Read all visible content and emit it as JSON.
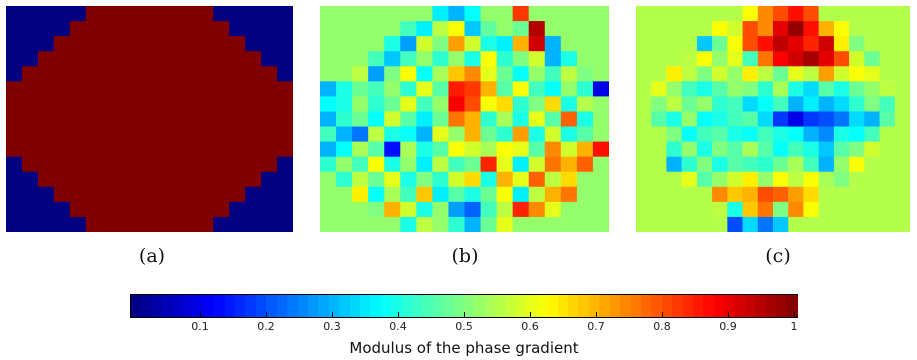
{
  "captions": {
    "a": "(a)",
    "b": "(b)",
    "c": "(c)"
  },
  "colorbar": {
    "label": "Modulus of the phase gradient",
    "ticks": [
      "0.1",
      "0.2",
      "0.3",
      "0.4",
      "0.5",
      "0.6",
      "0.7",
      "0.8",
      "0.9",
      "1"
    ],
    "tick_values": [
      0.1,
      0.2,
      0.3,
      0.4,
      0.5,
      0.6,
      0.7,
      0.8,
      0.9,
      1.0
    ],
    "range": [
      0,
      1
    ],
    "colormap": "jet"
  },
  "chart_data": [
    {
      "type": "heatmap",
      "panel": "a",
      "rows": 15,
      "cols": 18,
      "background_value": 0.0,
      "values": [
        [
          0.0,
          0.0,
          0.0,
          0.0,
          0.0,
          1.0,
          1.0,
          1.0,
          1.0,
          1.0,
          1.0,
          1.0,
          1.0,
          0.0,
          0.0,
          0.0,
          0.0,
          0.0
        ],
        [
          0.0,
          0.0,
          0.0,
          0.0,
          1.0,
          1.0,
          1.0,
          1.0,
          1.0,
          1.0,
          1.0,
          1.0,
          1.0,
          1.0,
          0.0,
          0.0,
          0.0,
          0.0
        ],
        [
          0.0,
          0.0,
          0.0,
          1.0,
          1.0,
          1.0,
          1.0,
          1.0,
          1.0,
          1.0,
          1.0,
          1.0,
          1.0,
          1.0,
          1.0,
          0.0,
          0.0,
          0.0
        ],
        [
          0.0,
          0.0,
          1.0,
          1.0,
          1.0,
          1.0,
          1.0,
          1.0,
          1.0,
          1.0,
          1.0,
          1.0,
          1.0,
          1.0,
          1.0,
          1.0,
          0.0,
          0.0
        ],
        [
          0.0,
          1.0,
          1.0,
          1.0,
          1.0,
          1.0,
          1.0,
          1.0,
          1.0,
          1.0,
          1.0,
          1.0,
          1.0,
          1.0,
          1.0,
          1.0,
          1.0,
          0.0
        ],
        [
          1.0,
          1.0,
          1.0,
          1.0,
          1.0,
          1.0,
          1.0,
          1.0,
          1.0,
          1.0,
          1.0,
          1.0,
          1.0,
          1.0,
          1.0,
          1.0,
          1.0,
          1.0
        ],
        [
          1.0,
          1.0,
          1.0,
          1.0,
          1.0,
          1.0,
          1.0,
          1.0,
          1.0,
          1.0,
          1.0,
          1.0,
          1.0,
          1.0,
          1.0,
          1.0,
          1.0,
          1.0
        ],
        [
          1.0,
          1.0,
          1.0,
          1.0,
          1.0,
          1.0,
          1.0,
          1.0,
          1.0,
          1.0,
          1.0,
          1.0,
          1.0,
          1.0,
          1.0,
          1.0,
          1.0,
          1.0
        ],
        [
          1.0,
          1.0,
          1.0,
          1.0,
          1.0,
          1.0,
          1.0,
          1.0,
          1.0,
          1.0,
          1.0,
          1.0,
          1.0,
          1.0,
          1.0,
          1.0,
          1.0,
          1.0
        ],
        [
          1.0,
          1.0,
          1.0,
          1.0,
          1.0,
          1.0,
          1.0,
          1.0,
          1.0,
          1.0,
          1.0,
          1.0,
          1.0,
          1.0,
          1.0,
          1.0,
          1.0,
          1.0
        ],
        [
          0.0,
          1.0,
          1.0,
          1.0,
          1.0,
          1.0,
          1.0,
          1.0,
          1.0,
          1.0,
          1.0,
          1.0,
          1.0,
          1.0,
          1.0,
          1.0,
          1.0,
          0.0
        ],
        [
          0.0,
          0.0,
          1.0,
          1.0,
          1.0,
          1.0,
          1.0,
          1.0,
          1.0,
          1.0,
          1.0,
          1.0,
          1.0,
          1.0,
          1.0,
          1.0,
          0.0,
          0.0
        ],
        [
          0.0,
          0.0,
          0.0,
          1.0,
          1.0,
          1.0,
          1.0,
          1.0,
          1.0,
          1.0,
          1.0,
          1.0,
          1.0,
          1.0,
          1.0,
          0.0,
          0.0,
          0.0
        ],
        [
          0.0,
          0.0,
          0.0,
          0.0,
          1.0,
          1.0,
          1.0,
          1.0,
          1.0,
          1.0,
          1.0,
          1.0,
          1.0,
          1.0,
          0.0,
          0.0,
          0.0,
          0.0
        ],
        [
          0.0,
          0.0,
          0.0,
          0.0,
          0.0,
          1.0,
          1.0,
          1.0,
          1.0,
          1.0,
          1.0,
          1.0,
          1.0,
          0.0,
          0.0,
          0.0,
          0.0,
          0.0
        ]
      ]
    },
    {
      "type": "heatmap",
      "panel": "b",
      "rows": 15,
      "cols": 18,
      "background_value": 0.52,
      "values": [
        [
          0.52,
          0.52,
          0.52,
          0.52,
          0.52,
          0.52,
          0.52,
          0.36,
          0.3,
          0.38,
          0.52,
          0.52,
          0.82,
          0.52,
          0.52,
          0.52,
          0.52,
          0.52
        ],
        [
          0.52,
          0.52,
          0.52,
          0.52,
          0.52,
          0.44,
          0.36,
          0.56,
          0.62,
          0.32,
          0.47,
          0.52,
          0.48,
          0.95,
          0.52,
          0.52,
          0.52,
          0.52
        ],
        [
          0.52,
          0.52,
          0.52,
          0.52,
          0.4,
          0.28,
          0.58,
          0.5,
          0.72,
          0.58,
          0.4,
          0.36,
          0.7,
          0.92,
          0.3,
          0.52,
          0.52,
          0.52
        ],
        [
          0.52,
          0.52,
          0.52,
          0.44,
          0.32,
          0.44,
          0.52,
          0.42,
          0.52,
          0.4,
          0.62,
          0.42,
          0.5,
          0.58,
          0.3,
          0.4,
          0.52,
          0.52
        ],
        [
          0.52,
          0.52,
          0.56,
          0.28,
          0.5,
          0.62,
          0.38,
          0.54,
          0.68,
          0.74,
          0.6,
          0.48,
          0.38,
          0.52,
          0.44,
          0.56,
          0.5,
          0.52
        ],
        [
          0.3,
          0.4,
          0.48,
          0.44,
          0.52,
          0.42,
          0.6,
          0.46,
          0.85,
          0.82,
          0.7,
          0.46,
          0.62,
          0.44,
          0.38,
          0.52,
          0.42,
          0.1
        ],
        [
          0.38,
          0.4,
          0.52,
          0.42,
          0.48,
          0.6,
          0.44,
          0.52,
          0.88,
          0.8,
          0.62,
          0.66,
          0.42,
          0.5,
          0.66,
          0.4,
          0.55,
          0.52
        ],
        [
          0.3,
          0.42,
          0.48,
          0.38,
          0.58,
          0.46,
          0.36,
          0.48,
          0.76,
          0.7,
          0.42,
          0.54,
          0.4,
          0.6,
          0.46,
          0.78,
          0.4,
          0.52
        ],
        [
          0.44,
          0.3,
          0.24,
          0.56,
          0.4,
          0.38,
          0.3,
          0.6,
          0.52,
          0.7,
          0.48,
          0.42,
          0.72,
          0.4,
          0.58,
          0.4,
          0.46,
          0.52
        ],
        [
          0.3,
          0.38,
          0.54,
          0.46,
          0.14,
          0.54,
          0.4,
          0.46,
          0.62,
          0.58,
          0.54,
          0.62,
          0.6,
          0.46,
          0.74,
          0.58,
          0.7,
          0.86
        ],
        [
          0.42,
          0.52,
          0.44,
          0.62,
          0.4,
          0.52,
          0.36,
          0.56,
          0.44,
          0.48,
          0.84,
          0.6,
          0.36,
          0.58,
          0.76,
          0.7,
          0.78,
          0.52
        ],
        [
          0.52,
          0.42,
          0.56,
          0.48,
          0.6,
          0.4,
          0.5,
          0.42,
          0.58,
          0.66,
          0.4,
          0.7,
          0.6,
          0.78,
          0.56,
          0.66,
          0.52,
          0.52
        ],
        [
          0.52,
          0.52,
          0.64,
          0.38,
          0.54,
          0.44,
          0.68,
          0.36,
          0.46,
          0.4,
          0.48,
          0.62,
          0.36,
          0.56,
          0.7,
          0.76,
          0.52,
          0.52
        ],
        [
          0.52,
          0.52,
          0.52,
          0.5,
          0.7,
          0.58,
          0.4,
          0.52,
          0.28,
          0.22,
          0.44,
          0.56,
          0.84,
          0.74,
          0.6,
          0.52,
          0.52,
          0.52
        ],
        [
          0.52,
          0.52,
          0.52,
          0.52,
          0.52,
          0.4,
          0.56,
          0.52,
          0.42,
          0.3,
          0.48,
          0.6,
          0.52,
          0.52,
          0.52,
          0.52,
          0.52,
          0.52
        ]
      ]
    },
    {
      "type": "heatmap",
      "panel": "c",
      "rows": 15,
      "cols": 18,
      "background_value": 0.55,
      "values": [
        [
          0.55,
          0.55,
          0.55,
          0.55,
          0.55,
          0.55,
          0.55,
          0.62,
          0.74,
          0.8,
          0.86,
          0.8,
          0.55,
          0.55,
          0.55,
          0.55,
          0.55,
          0.55
        ],
        [
          0.55,
          0.55,
          0.55,
          0.55,
          0.55,
          0.62,
          0.58,
          0.8,
          0.74,
          0.9,
          0.98,
          0.86,
          0.7,
          0.62,
          0.55,
          0.55,
          0.55,
          0.55
        ],
        [
          0.55,
          0.55,
          0.55,
          0.55,
          0.32,
          0.48,
          0.62,
          0.8,
          0.86,
          0.94,
          0.9,
          0.84,
          0.92,
          0.64,
          0.5,
          0.55,
          0.55,
          0.55
        ],
        [
          0.55,
          0.55,
          0.55,
          0.56,
          0.62,
          0.52,
          0.6,
          0.44,
          0.76,
          0.88,
          0.92,
          0.96,
          0.9,
          0.8,
          0.58,
          0.48,
          0.55,
          0.55
        ],
        [
          0.55,
          0.55,
          0.64,
          0.56,
          0.5,
          0.58,
          0.52,
          0.64,
          0.56,
          0.48,
          0.6,
          0.56,
          0.72,
          0.58,
          0.62,
          0.6,
          0.55,
          0.55
        ],
        [
          0.55,
          0.6,
          0.52,
          0.44,
          0.4,
          0.46,
          0.52,
          0.5,
          0.42,
          0.54,
          0.4,
          0.34,
          0.46,
          0.4,
          0.48,
          0.52,
          0.56,
          0.55
        ],
        [
          0.55,
          0.5,
          0.56,
          0.48,
          0.52,
          0.42,
          0.44,
          0.34,
          0.38,
          0.44,
          0.3,
          0.36,
          0.3,
          0.34,
          0.42,
          0.5,
          0.44,
          0.55
        ],
        [
          0.55,
          0.46,
          0.4,
          0.52,
          0.38,
          0.4,
          0.44,
          0.46,
          0.34,
          0.18,
          0.1,
          0.18,
          0.2,
          0.24,
          0.34,
          0.3,
          0.46,
          0.55
        ],
        [
          0.55,
          0.55,
          0.5,
          0.38,
          0.44,
          0.46,
          0.4,
          0.38,
          0.44,
          0.4,
          0.38,
          0.3,
          0.26,
          0.4,
          0.38,
          0.44,
          0.55,
          0.55
        ],
        [
          0.55,
          0.55,
          0.42,
          0.52,
          0.4,
          0.5,
          0.46,
          0.54,
          0.46,
          0.38,
          0.44,
          0.4,
          0.32,
          0.46,
          0.5,
          0.58,
          0.55,
          0.55
        ],
        [
          0.55,
          0.55,
          0.3,
          0.42,
          0.5,
          0.4,
          0.46,
          0.44,
          0.42,
          0.48,
          0.54,
          0.44,
          0.3,
          0.52,
          0.62,
          0.55,
          0.55,
          0.55
        ],
        [
          0.55,
          0.55,
          0.55,
          0.6,
          0.46,
          0.52,
          0.58,
          0.64,
          0.52,
          0.62,
          0.56,
          0.62,
          0.54,
          0.5,
          0.55,
          0.55,
          0.55,
          0.55
        ],
        [
          0.55,
          0.55,
          0.55,
          0.55,
          0.55,
          0.74,
          0.68,
          0.7,
          0.8,
          0.78,
          0.72,
          0.66,
          0.55,
          0.55,
          0.55,
          0.55,
          0.55,
          0.55
        ],
        [
          0.55,
          0.55,
          0.55,
          0.55,
          0.55,
          0.56,
          0.4,
          0.68,
          0.76,
          0.5,
          0.74,
          0.62,
          0.55,
          0.55,
          0.55,
          0.55,
          0.55,
          0.55
        ],
        [
          0.55,
          0.55,
          0.55,
          0.55,
          0.55,
          0.55,
          0.2,
          0.34,
          0.24,
          0.32,
          0.55,
          0.55,
          0.55,
          0.55,
          0.55,
          0.55,
          0.55,
          0.55
        ]
      ]
    }
  ]
}
